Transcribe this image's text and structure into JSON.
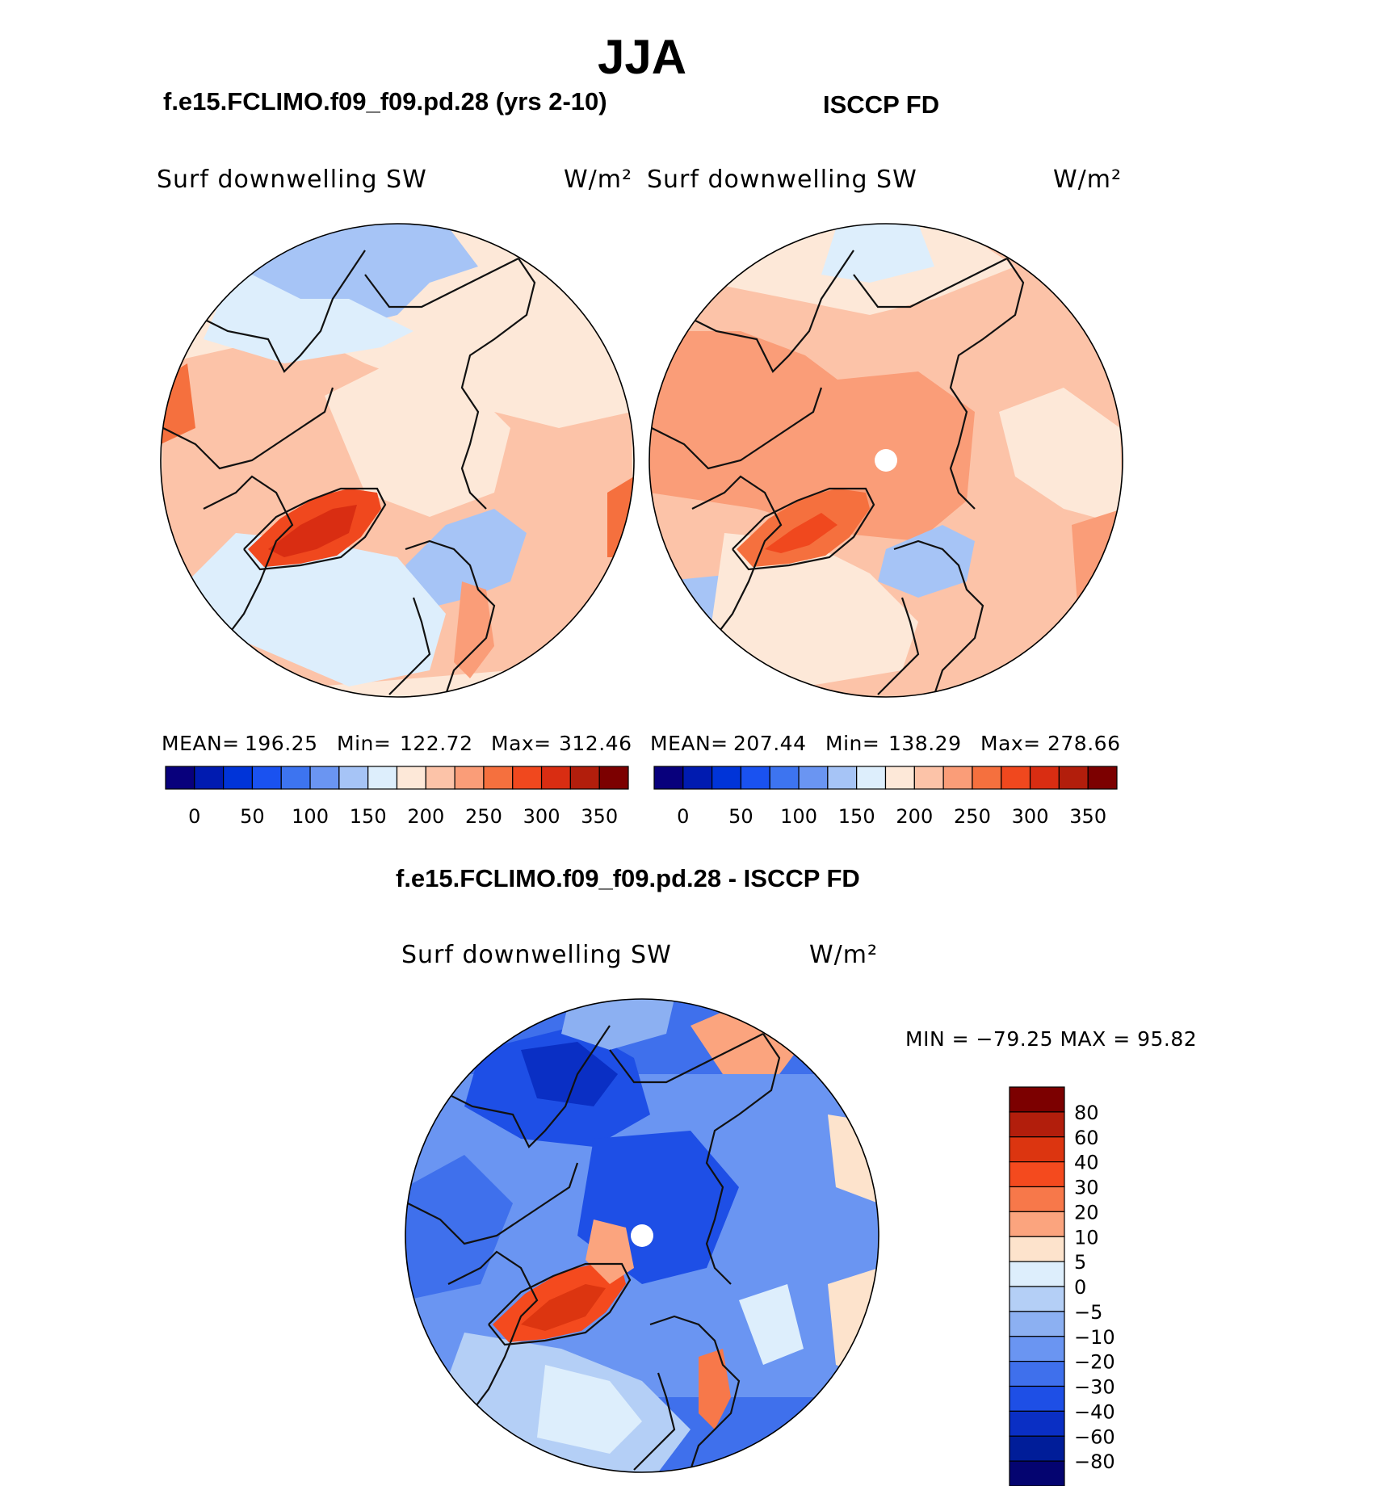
{
  "season_title": "JJA",
  "panels": [
    {
      "case_title": "f.e15.FCLIMO.f09_f09.pd.28 (yrs 2-10)",
      "variable": "Surf downwelling SW",
      "units": "W/m²",
      "stats": {
        "mean_label": "MEAN=",
        "mean": "196.25",
        "min_label": "Min=",
        "min": "122.72",
        "max_label": "Max=",
        "max": "312.46"
      },
      "show_pole_hole": false
    },
    {
      "case_title": "ISCCP FD",
      "variable": "Surf downwelling SW",
      "units": "W/m²",
      "stats": {
        "mean_label": "MEAN=",
        "mean": "207.44",
        "min_label": "Min=",
        "min": "138.29",
        "max_label": "Max=",
        "max": "278.66"
      },
      "show_pole_hole": true
    }
  ],
  "diff_panel": {
    "title": "f.e15.FCLIMO.f09_f09.pd.28 - ISCCP FD",
    "variable": "Surf downwelling SW",
    "units": "W/m²",
    "minmax_text": "MIN = −79.25 MAX =  95.82"
  },
  "chart_data": [
    {
      "type": "heatmap",
      "projection": "north polar stereographic",
      "title": "f.e15.FCLIMO.f09_f09.pd.28 (yrs 2-10)",
      "variable": "Surf downwelling SW",
      "units": "W/m²",
      "mean": 196.25,
      "min": 122.72,
      "max": 312.46,
      "colorbar_ticks": [
        0,
        50,
        100,
        150,
        200,
        250,
        300,
        350
      ],
      "colorbar_colors": [
        "#08007c",
        "#001bb0",
        "#0034d8",
        "#1a52f0",
        "#3d74f0",
        "#6a95f2",
        "#a6c4f6",
        "#ddeefc",
        "#fde8d8",
        "#fcc3a8",
        "#fa9d78",
        "#f5703e",
        "#f0481e",
        "#d92d12",
        "#b21e0c",
        "#7c0000"
      ],
      "colorbar_orientation": "horizontal"
    },
    {
      "type": "heatmap",
      "projection": "north polar stereographic",
      "title": "ISCCP FD",
      "variable": "Surf downwelling SW",
      "units": "W/m²",
      "mean": 207.44,
      "min": 138.29,
      "max": 278.66,
      "colorbar_ticks": [
        0,
        50,
        100,
        150,
        200,
        250,
        300,
        350
      ],
      "colorbar_colors": [
        "#08007c",
        "#001bb0",
        "#0034d8",
        "#1a52f0",
        "#3d74f0",
        "#6a95f2",
        "#a6c4f6",
        "#ddeefc",
        "#fde8d8",
        "#fcc3a8",
        "#fa9d78",
        "#f5703e",
        "#f0481e",
        "#d92d12",
        "#b21e0c",
        "#7c0000"
      ],
      "colorbar_orientation": "horizontal"
    },
    {
      "type": "heatmap",
      "projection": "north polar stereographic",
      "title": "f.e15.FCLIMO.f09_f09.pd.28 - ISCCP FD",
      "variable": "Surf downwelling SW",
      "units": "W/m²",
      "min": -79.25,
      "max": 95.82,
      "colorbar_ticks": [
        80,
        60,
        40,
        30,
        20,
        10,
        5,
        0,
        -5,
        -10,
        -20,
        -30,
        -40,
        -60,
        -80
      ],
      "colorbar_colors": [
        "#7c0000",
        "#b21e0c",
        "#dc3510",
        "#f44a1e",
        "#f7784a",
        "#fba47e",
        "#fde3cc",
        "#ddeefc",
        "#b4cff6",
        "#8cb0f2",
        "#6a95f2",
        "#3f70ec",
        "#1e4fe6",
        "#0a2fc4",
        "#001d99",
        "#040470"
      ],
      "colorbar_orientation": "vertical"
    }
  ]
}
